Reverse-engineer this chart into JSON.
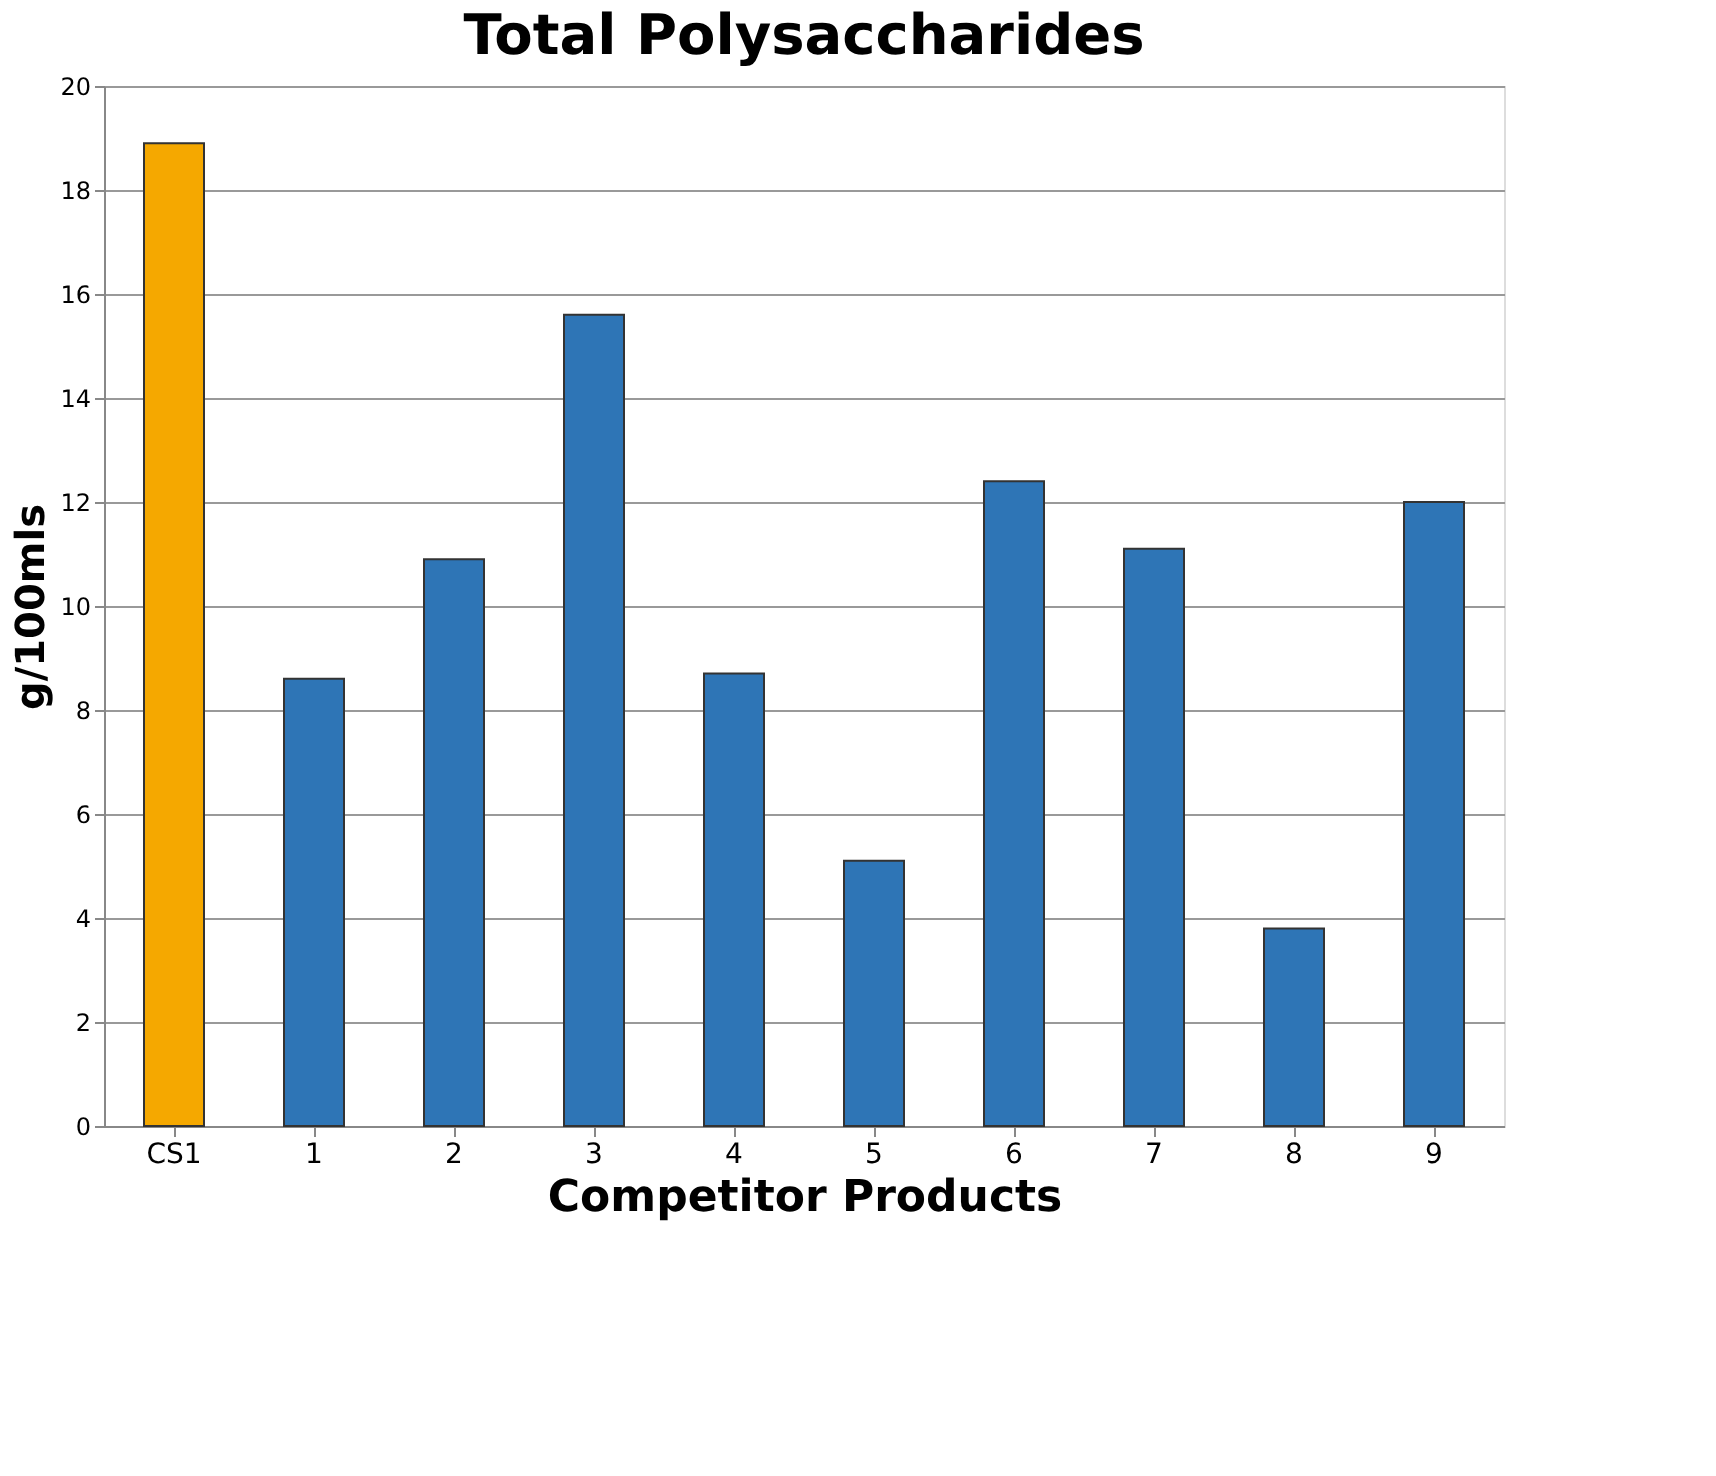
{
  "chart_data": {
    "type": "bar",
    "title": "Total Polysaccharides",
    "xlabel": "Competitor Products",
    "ylabel": "g/100mls",
    "categories": [
      "CS1",
      "1",
      "2",
      "3",
      "4",
      "5",
      "6",
      "7",
      "8",
      "9"
    ],
    "values": [
      18.9,
      8.6,
      10.9,
      15.6,
      8.7,
      5.1,
      12.4,
      11.1,
      3.8,
      12.0
    ],
    "colors": [
      "#f5a800",
      "#2e75b6",
      "#2e75b6",
      "#2e75b6",
      "#2e75b6",
      "#2e75b6",
      "#2e75b6",
      "#2e75b6",
      "#2e75b6",
      "#2e75b6"
    ],
    "ylim": [
      0,
      20
    ],
    "yticks": [
      0,
      2,
      4,
      6,
      8,
      10,
      12,
      14,
      16,
      18,
      20
    ],
    "grid": "y",
    "legend": false
  }
}
